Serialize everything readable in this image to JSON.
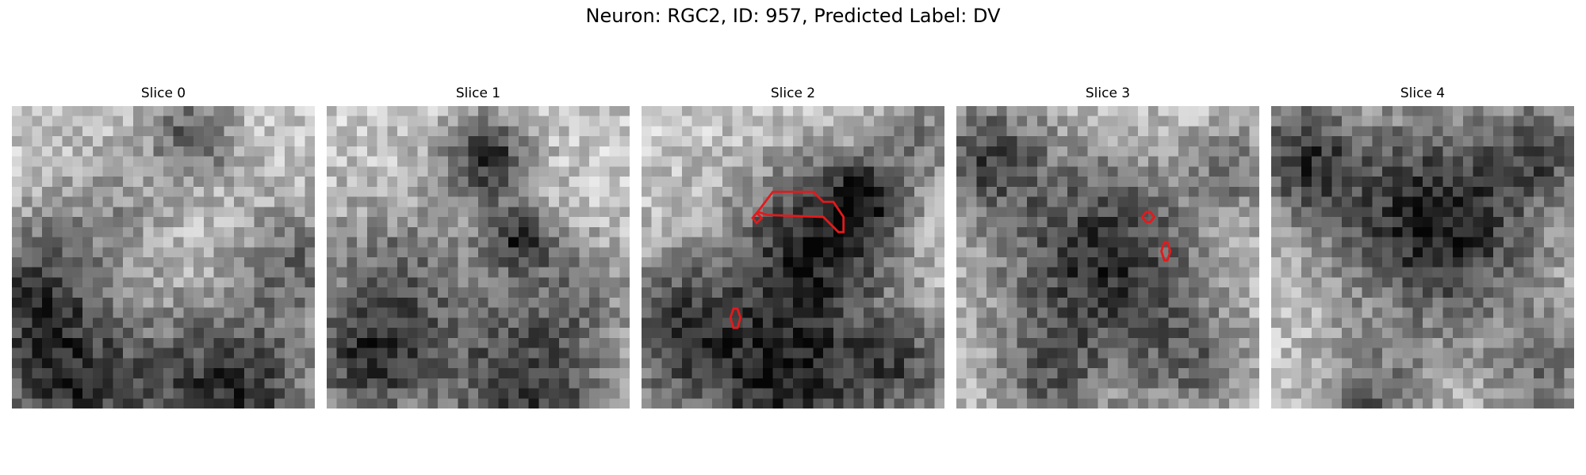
{
  "figure": {
    "title": "Neuron: RGC2, ID: 957, Predicted Label: DV"
  },
  "panels": [
    {
      "title": "Slice 0"
    },
    {
      "title": "Slice 1"
    },
    {
      "title": "Slice 2"
    },
    {
      "title": "Slice 3"
    },
    {
      "title": "Slice 4"
    }
  ],
  "colors": {
    "contour": "#e31a1c"
  }
}
